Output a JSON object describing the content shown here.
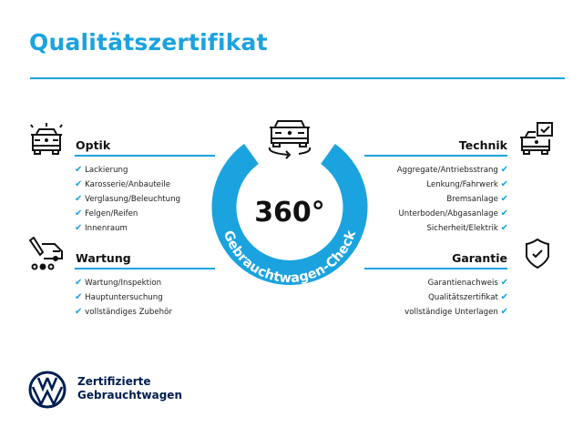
{
  "title": "Qualitätszertifikat",
  "accent_color": "#1aa3df",
  "brand_color": "#001e50",
  "center": {
    "value": "360°",
    "arc_text": "Gebrauchtwagen-Check",
    "icon": "car-rotate-icon"
  },
  "sections": {
    "optik": {
      "title": "Optik",
      "icon": "car-lights-icon",
      "items": [
        "Lackierung",
        "Karosserie/Anbauteile",
        "Verglasung/Beleuchtung",
        "Felgen/Reifen",
        "Innenraum"
      ]
    },
    "wartung": {
      "title": "Wartung",
      "icon": "service-van-icon",
      "items": [
        "Wartung/Inspektion",
        "Hauptuntersuchung",
        "vollständiges Zubehör"
      ]
    },
    "technik": {
      "title": "Technik",
      "icon": "car-checkbox-icon",
      "items": [
        "Aggregate/Antriebsstrang",
        "Lenkung/Fahrwerk",
        "Bremsanlage",
        "Unterboden/Abgasanlage",
        "Sicherheit/Elektrik"
      ]
    },
    "garantie": {
      "title": "Garantie",
      "icon": "shield-check-icon",
      "items": [
        "Garantienachweis",
        "Qualitätszertifikat",
        "vollständige Unterlagen"
      ]
    }
  },
  "check_mark": "✔",
  "footer": {
    "line1": "Zertifizierte",
    "line2": "Gebrauchtwagen",
    "logo": "vw-logo"
  }
}
